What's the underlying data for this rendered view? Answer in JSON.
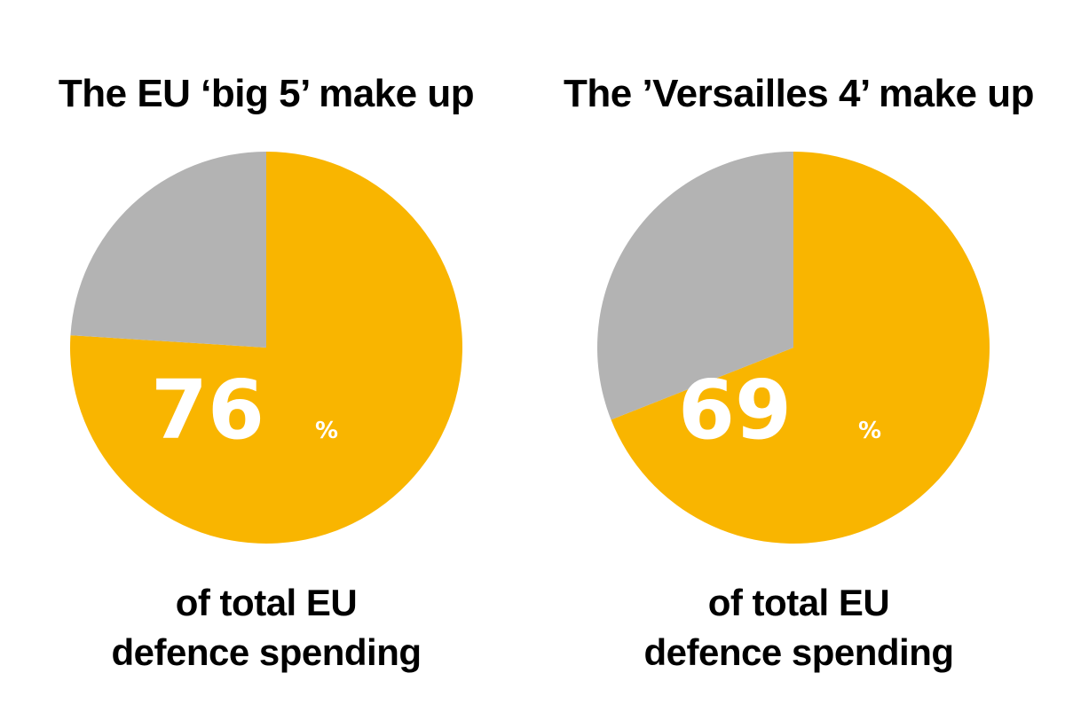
{
  "colors": {
    "highlight": "#F9B500",
    "rest": "#B3B3B3",
    "text": "#000000",
    "label": "#FFFFFF"
  },
  "chart_data": [
    {
      "type": "pie",
      "title": "The EU ‘big 5’ make up",
      "value": 76,
      "value_display": "76",
      "unit": "%",
      "slices": [
        {
          "value": 76,
          "color": "#F9B500"
        },
        {
          "value": 24,
          "color": "#B3B3B3"
        }
      ],
      "caption": [
        "of total EU",
        "defence spending"
      ]
    },
    {
      "type": "pie",
      "title": "The ’Versailles 4’ make up",
      "value": 69,
      "value_display": "69",
      "unit": "%",
      "slices": [
        {
          "value": 69,
          "color": "#F9B500"
        },
        {
          "value": 31,
          "color": "#B3B3B3"
        }
      ],
      "caption": [
        "of total EU",
        "defence spending"
      ]
    }
  ]
}
